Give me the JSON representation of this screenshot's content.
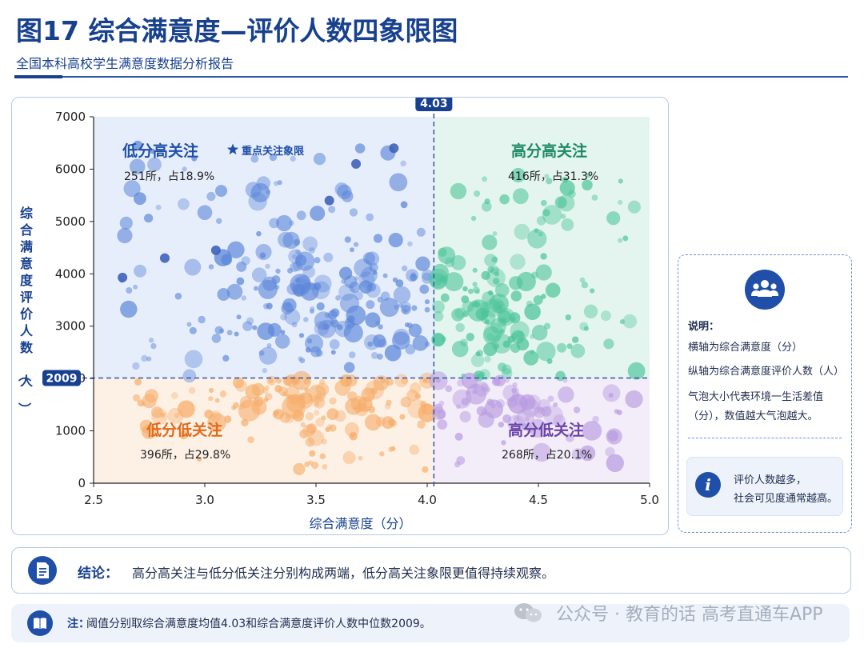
{
  "page": {
    "title": "图17  综合满意度—评价人数四象限图",
    "subtitle": "全国本科高校学生满意度数据分析报告"
  },
  "chart_data": {
    "type": "scatter",
    "title": "",
    "xlabel": "综合满意度（分）",
    "ylabel": "综合满意度评价人数（人）",
    "xlim": [
      2.5,
      5.0
    ],
    "ylim": [
      0,
      7000
    ],
    "xticks": [
      "2.5",
      "3.0",
      "3.5",
      "4.0",
      "4.5",
      "5.0"
    ],
    "yticks": [
      "0",
      "1000",
      "2000",
      "3000",
      "4000",
      "5000",
      "6000",
      "7000"
    ],
    "threshold_x": {
      "value": 4.03,
      "label": "4.03"
    },
    "threshold_y": {
      "value": 2009,
      "label": "2009"
    },
    "quadrants": [
      {
        "position": "top-left",
        "name": "低分高关注",
        "stat": "251所，占18.9%",
        "tag": "重点关注象限",
        "color": "#1f4fa8",
        "bubble_color": "#5b86d9",
        "fill": "#e7eefb"
      },
      {
        "position": "top-right",
        "name": "高分高关注",
        "stat": "416所，占31.3%",
        "color": "#1d8a66",
        "bubble_color": "#4cc49a",
        "fill": "#e3f5ee"
      },
      {
        "position": "bottom-left",
        "name": "低分低关注",
        "stat": "396所，占29.8%",
        "color": "#e06a1b",
        "bubble_color": "#f6ad6a",
        "fill": "#fdf1e6"
      },
      {
        "position": "bottom-right",
        "name": "高分低关注",
        "stat": "268所，占20.1%",
        "color": "#6b43a8",
        "bubble_color": "#b99be0",
        "fill": "#f2edf9"
      }
    ],
    "bubble_note": "气泡大小代表环境一生活差值（分），数值越大气泡越大。",
    "dark_points": [
      {
        "x": 3.85,
        "y": 6400
      },
      {
        "x": 3.68,
        "y": 6100
      },
      {
        "x": 2.82,
        "y": 4300
      },
      {
        "x": 2.63,
        "y": 3930
      },
      {
        "x": 3.56,
        "y": 5400
      },
      {
        "x": 3.05,
        "y": 4450
      }
    ],
    "seed_points": [
      {
        "x": 2.64,
        "y": 4730,
        "size": 3.2
      },
      {
        "x": 3.25,
        "y": 5550,
        "size": 4.0
      },
      {
        "x": 3.0,
        "y": 5170,
        "size": 3.1
      },
      {
        "x": 3.87,
        "y": 5750,
        "size": 3.8
      },
      {
        "x": 3.43,
        "y": 3800,
        "size": 4.4
      },
      {
        "x": 3.83,
        "y": 3360,
        "size": 4.0
      },
      {
        "x": 4.14,
        "y": 5580,
        "size": 3.4
      },
      {
        "x": 4.12,
        "y": 3850,
        "size": 4.0
      },
      {
        "x": 4.23,
        "y": 3300,
        "size": 4.6
      },
      {
        "x": 4.28,
        "y": 4600,
        "size": 3.2
      },
      {
        "x": 3.2,
        "y": 1390,
        "size": 4.6
      },
      {
        "x": 3.4,
        "y": 1460,
        "size": 5.0
      },
      {
        "x": 4.22,
        "y": 1700,
        "size": 4.3
      },
      {
        "x": 2.75,
        "y": 1570,
        "size": 3.0
      }
    ]
  },
  "legend_note": {
    "heading": "说明：",
    "lines": [
      "横轴为综合满意度（分）",
      "纵轴为综合满意度评价人数（人）",
      "气泡大小代表环境一生活差值",
      "（分），数值越大气泡越大。"
    ],
    "tip_lines": [
      "评价人数越多，",
      "社会可见度通常越高。"
    ]
  },
  "conclusion": {
    "label": "结论：",
    "text": "高分高关注与低分低关注分别构成两端，低分高关注象限更值得持续观察。"
  },
  "note": {
    "label": "注：",
    "text": "阈值分别取综合满意度均值4.03和综合满意度评价人数中位数2009。"
  },
  "watermark": {
    "text": "公众号 · 教育的话 高考直通车APP"
  },
  "colors": {
    "primary": "#17408f",
    "icon_bg": "#1f4fa8",
    "threshold_line": "#2f55a8"
  },
  "icons": {
    "people": "people-group-icon",
    "info": "info-icon",
    "document": "document-icon",
    "book": "book-icon",
    "star": "star-icon"
  }
}
